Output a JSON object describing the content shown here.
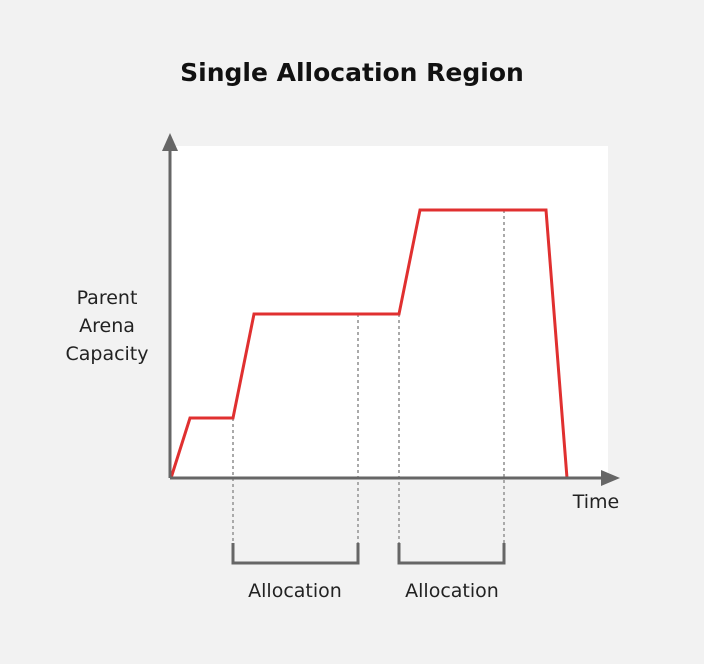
{
  "title": "Single Allocation Region",
  "ylabel_lines": [
    "Parent",
    "Arena",
    "Capacity"
  ],
  "xlabel": "Time",
  "allocation_labels": [
    "Allocation",
    "Allocation"
  ],
  "colors": {
    "background": "#f2f2f2",
    "plot_area": "#ffffff",
    "capacity_line": "#e03030",
    "axis": "#666666",
    "guide": "#aaaaaa",
    "bracket": "#666666"
  }
}
